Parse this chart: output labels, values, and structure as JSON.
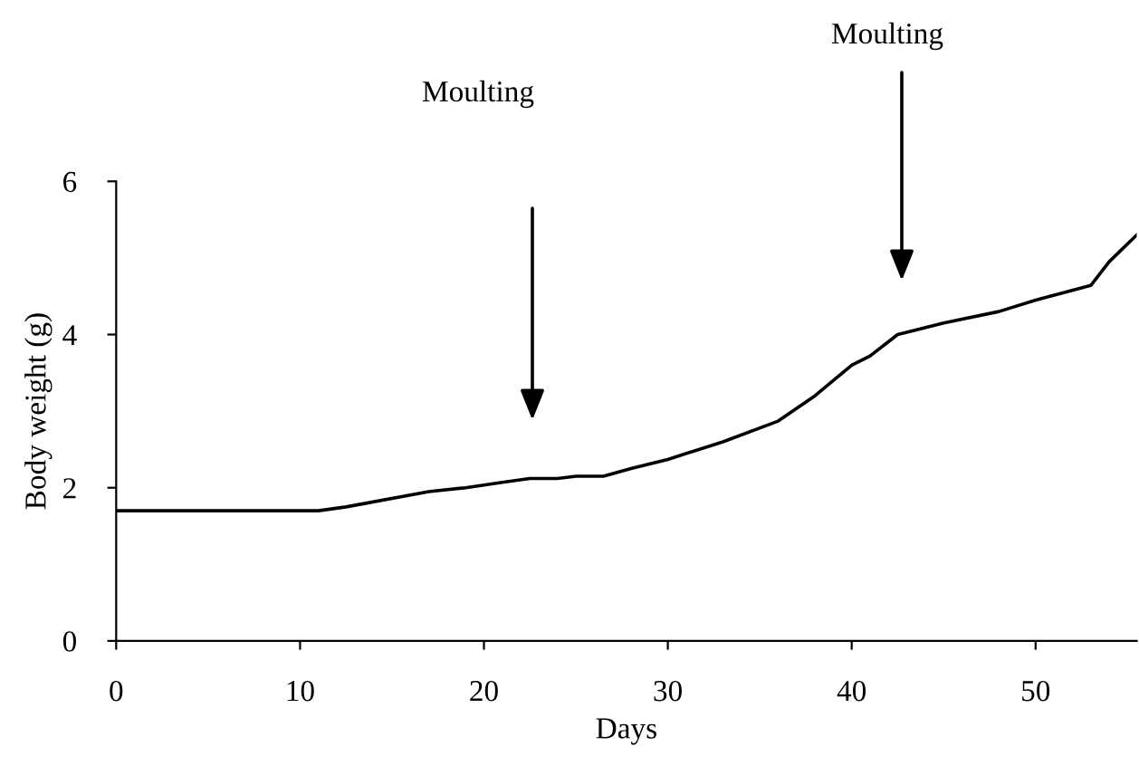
{
  "chart_data": {
    "type": "line",
    "xlabel": "Days",
    "ylabel": "Body weight (g)",
    "x": [
      0,
      11,
      12.5,
      17,
      19,
      21,
      22.5,
      24,
      25,
      26.5,
      28,
      30,
      33,
      36,
      38,
      40,
      41,
      42.5,
      45,
      48,
      50,
      53,
      54,
      55.5
    ],
    "values": [
      1.7,
      1.7,
      1.75,
      1.95,
      2.0,
      2.07,
      2.12,
      2.12,
      2.15,
      2.15,
      2.25,
      2.37,
      2.6,
      2.87,
      3.2,
      3.6,
      3.72,
      4.0,
      4.15,
      4.3,
      4.45,
      4.64,
      4.95,
      5.3
    ],
    "color": "#000000",
    "xlim": [
      0,
      55.5
    ],
    "ylim": [
      0,
      6
    ],
    "xticks": [
      0,
      10,
      20,
      30,
      40,
      50
    ],
    "yticks": [
      0,
      2,
      4,
      6
    ],
    "grid": false,
    "legend": false,
    "marker": "none",
    "line_style": "solid",
    "annotations": [
      "Moulting",
      "Moulting"
    ]
  }
}
